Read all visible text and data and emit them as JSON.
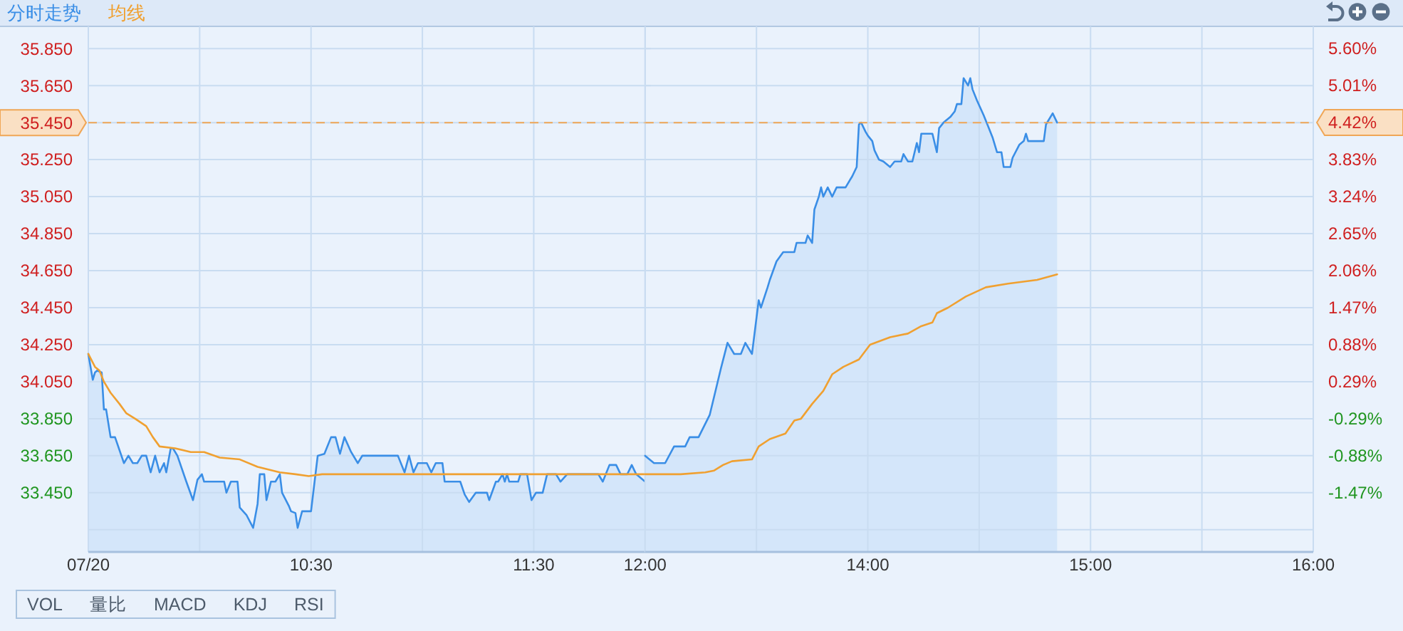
{
  "chart_data": [
    {
      "type": "area",
      "legend": "top left",
      "grid": true,
      "xlim": [
        9.5,
        12
      ],
      "xticks": [
        {
          "value": 9.5,
          "label": "07/20"
        },
        {
          "value": 10,
          "label": null
        },
        {
          "value": 10.5,
          "label": "10:30"
        },
        {
          "value": 11,
          "label": null
        },
        {
          "value": 11.5,
          "label": "11:30"
        },
        {
          "value": 12,
          "label": "12:00"
        }
      ],
      "ylim": [
        33.13,
        35.97
      ],
      "yticks": [
        {
          "value": 33.25,
          "label": null
        },
        {
          "value": 33.45,
          "label": "33.450"
        },
        {
          "value": 33.65,
          "label": "33.650"
        },
        {
          "value": 33.85,
          "label": "33.850"
        },
        {
          "value": 34.05,
          "label": "34.050"
        },
        {
          "value": 34.25,
          "label": "34.250"
        },
        {
          "value": 34.45,
          "label": "34.450"
        },
        {
          "value": 34.65,
          "label": "34.650"
        },
        {
          "value": 34.85,
          "label": "34.850"
        },
        {
          "value": 35.05,
          "label": "35.050"
        },
        {
          "value": 35.25,
          "label": "35.250"
        },
        {
          "value": 35.45,
          "label": "35.450"
        },
        {
          "value": 35.65,
          "label": "35.650"
        },
        {
          "value": 35.85,
          "label": "35.850"
        }
      ],
      "ref_lines": [
        {
          "axis": "y",
          "value": 35.45,
          "color": "#f0a656",
          "line_style": "dashed"
        }
      ],
      "annotations": [
        "VOL",
        "量比",
        "MACD",
        "KDJ",
        "RSI"
      ],
      "series": [
        {
          "name": "分时走势",
          "color": "#3a8ee6",
          "x": [
            9.5,
            9.52,
            9.53,
            9.54,
            9.56,
            9.57,
            9.58,
            9.6,
            9.62,
            9.66,
            9.68,
            9.7,
            9.72,
            9.74,
            9.76,
            9.78,
            9.8,
            9.82,
            9.84,
            9.85,
            9.87,
            9.88,
            9.9,
            9.94,
            9.97,
            9.99,
            10.01,
            10.02,
            10.11,
            10.12,
            10.14,
            10.17,
            10.18,
            10.21,
            10.24,
            10.26,
            10.27,
            10.29,
            10.3,
            10.32,
            10.34,
            10.36,
            10.37,
            10.4,
            10.41,
            10.43,
            10.44,
            10.46,
            10.5,
            10.52,
            10.53,
            10.56,
            10.59,
            10.61,
            10.63,
            10.65,
            10.68,
            10.71,
            10.73,
            10.89,
            10.92,
            10.94,
            10.96,
            10.98,
            11.02,
            11.04,
            11.06,
            11.09,
            11.1,
            11.17,
            11.19,
            11.21,
            11.24,
            11.29,
            11.3,
            11.33,
            11.34,
            11.36,
            11.37,
            11.38,
            11.39,
            11.43,
            11.44,
            11.47,
            11.49,
            11.51,
            11.54,
            11.56,
            11.6,
            11.62,
            11.65,
            11.79,
            11.81,
            11.84,
            11.87,
            11.89,
            11.92,
            11.94,
            11.96,
            12
          ],
          "values": [
            34.2,
            34.06,
            34.1,
            34.11,
            34.1,
            33.9,
            33.9,
            33.75,
            33.75,
            33.61,
            33.65,
            33.61,
            33.61,
            33.65,
            33.65,
            33.56,
            33.65,
            33.56,
            33.61,
            33.56,
            33.69,
            33.69,
            33.65,
            33.51,
            33.41,
            33.52,
            33.55,
            33.51,
            33.51,
            33.45,
            33.51,
            33.51,
            33.37,
            33.33,
            33.26,
            33.39,
            33.55,
            33.55,
            33.41,
            33.51,
            33.51,
            33.55,
            33.45,
            33.38,
            33.35,
            33.34,
            33.26,
            33.35,
            33.35,
            33.55,
            33.65,
            33.66,
            33.75,
            33.75,
            33.66,
            33.75,
            33.67,
            33.61,
            33.65,
            33.65,
            33.56,
            33.65,
            33.56,
            33.61,
            33.61,
            33.56,
            33.61,
            33.61,
            33.51,
            33.51,
            33.44,
            33.4,
            33.45,
            33.45,
            33.41,
            33.51,
            33.51,
            33.55,
            33.51,
            33.55,
            33.51,
            33.51,
            33.55,
            33.55,
            33.41,
            33.45,
            33.45,
            33.55,
            33.55,
            33.51,
            33.55,
            33.55,
            33.51,
            33.6,
            33.6,
            33.55,
            33.55,
            33.6,
            33.55,
            33.51
          ]
        },
        {
          "name": "均线",
          "type": "line",
          "color": "#f0a030",
          "x": [
            9.5,
            9.53,
            9.55,
            9.57,
            9.6,
            9.64,
            9.67,
            9.71,
            9.76,
            9.79,
            9.82,
            9.89,
            9.96,
            10.02,
            10.09,
            10.18,
            10.26,
            10.36,
            10.43,
            10.49,
            10.55,
            12
          ],
          "values": [
            34.2,
            34.13,
            34.11,
            34.05,
            33.99,
            33.93,
            33.88,
            33.85,
            33.81,
            33.75,
            33.7,
            33.69,
            33.67,
            33.67,
            33.64,
            33.63,
            33.59,
            33.56,
            33.55,
            33.54,
            33.55,
            33.55
          ]
        }
      ]
    },
    {
      "type": "area",
      "grid": true,
      "tick_labels": "x",
      "xlim": [
        13,
        16
      ],
      "xticks": [
        {
          "value": 13.5,
          "label": null
        },
        {
          "value": 14,
          "label": "14:00"
        },
        {
          "value": 14.5,
          "label": null
        },
        {
          "value": 15,
          "label": "15:00"
        },
        {
          "value": 15.5,
          "label": null
        },
        {
          "value": 16,
          "label": "16:00"
        }
      ],
      "ylim": [
        33.13,
        35.97
      ],
      "yticks": [
        {
          "value": 33.25,
          "label": null
        },
        {
          "value": 33.45,
          "label": null
        },
        {
          "value": 33.65,
          "label": null
        },
        {
          "value": 33.85,
          "label": null
        },
        {
          "value": 34.05,
          "label": null
        },
        {
          "value": 34.25,
          "label": null
        },
        {
          "value": 34.45,
          "label": null
        },
        {
          "value": 34.65,
          "label": null
        },
        {
          "value": 34.85,
          "label": null
        },
        {
          "value": 35.05,
          "label": null
        },
        {
          "value": 35.25,
          "label": null
        },
        {
          "value": 35.45,
          "label": null
        },
        {
          "value": 35.65,
          "label": null
        },
        {
          "value": 35.85,
          "label": null
        }
      ],
      "y2lim": [
        -2.42,
        5.95
      ],
      "y2ticks": [
        {
          "value": -1.47,
          "label": "-1.47%"
        },
        {
          "value": -0.88,
          "label": "-0.88%"
        },
        {
          "value": -0.29,
          "label": "-0.29%"
        },
        {
          "value": 0.29,
          "label": "0.29%"
        },
        {
          "value": 0.88,
          "label": "0.88%"
        },
        {
          "value": 1.47,
          "label": "1.47%"
        },
        {
          "value": 2.06,
          "label": "2.06%"
        },
        {
          "value": 2.65,
          "label": "2.65%"
        },
        {
          "value": 3.24,
          "label": "3.24%"
        },
        {
          "value": 3.83,
          "label": "3.83%"
        },
        {
          "value": 4.42,
          "label": "4.42%"
        },
        {
          "value": 5.01,
          "label": "5.01%"
        },
        {
          "value": 5.6,
          "label": "5.60%"
        }
      ],
      "ref_lines": [
        {
          "axis": "y",
          "value": 35.45,
          "color": "#f0a656",
          "line_style": "dashed"
        }
      ],
      "series": [
        {
          "color": "#3a8ee6",
          "x": [
            13,
            13.04,
            13.09,
            13.13,
            13.18,
            13.2,
            13.24,
            13.29,
            13.32,
            13.34,
            13.37,
            13.4,
            13.43,
            13.45,
            13.48,
            13.51,
            13.52,
            13.55,
            13.56,
            13.59,
            13.62,
            13.67,
            13.68,
            13.72,
            13.73,
            13.75,
            13.76,
            13.78,
            13.79,
            13.8,
            13.82,
            13.84,
            13.86,
            13.9,
            13.92,
            13.93,
            13.95,
            13.96,
            13.97,
            13.99,
            14,
            14.02,
            14.03,
            14.05,
            14.07,
            14.1,
            14.12,
            14.15,
            14.16,
            14.18,
            14.2,
            14.22,
            14.23,
            14.24,
            14.29,
            14.31,
            14.32,
            14.34,
            14.37,
            14.39,
            14.4,
            14.42,
            14.43,
            14.45,
            14.46,
            14.47,
            14.49,
            14.52,
            14.54,
            14.56,
            14.58,
            14.6,
            14.61,
            14.64,
            14.65,
            14.68,
            14.7,
            14.71,
            14.72,
            14.79,
            14.8,
            14.83,
            14.85
          ],
          "values": [
            33.65,
            33.61,
            33.61,
            33.7,
            33.7,
            33.75,
            33.75,
            33.87,
            34.02,
            34.12,
            34.26,
            34.2,
            34.2,
            34.26,
            34.2,
            34.49,
            34.45,
            34.56,
            34.6,
            34.7,
            34.75,
            34.75,
            34.8,
            34.8,
            34.84,
            34.8,
            34.98,
            35.05,
            35.1,
            35.05,
            35.1,
            35.05,
            35.1,
            35.1,
            35.14,
            35.16,
            35.21,
            35.44,
            35.45,
            35.4,
            35.38,
            35.35,
            35.3,
            35.25,
            35.24,
            35.21,
            35.24,
            35.24,
            35.28,
            35.24,
            35.24,
            35.34,
            35.29,
            35.39,
            35.39,
            35.29,
            35.42,
            35.45,
            35.48,
            35.51,
            35.55,
            35.55,
            35.69,
            35.65,
            35.69,
            35.63,
            35.57,
            35.49,
            35.43,
            35.37,
            35.29,
            35.29,
            35.21,
            35.21,
            35.26,
            35.33,
            35.35,
            35.39,
            35.35,
            35.35,
            35.44,
            35.5,
            35.45
          ]
        },
        {
          "type": "line",
          "color": "#f0a030",
          "x": [
            13,
            13.16,
            13.27,
            13.31,
            13.35,
            13.39,
            13.48,
            13.51,
            13.56,
            13.63,
            13.67,
            13.7,
            13.75,
            13.8,
            13.84,
            13.89,
            13.96,
            14.01,
            14.1,
            14.18,
            14.24,
            14.29,
            14.31,
            14.36,
            14.44,
            14.53,
            14.63,
            14.76,
            14.85
          ],
          "values": [
            33.55,
            33.55,
            33.56,
            33.57,
            33.6,
            33.62,
            33.63,
            33.7,
            33.74,
            33.77,
            33.84,
            33.85,
            33.93,
            34.0,
            34.09,
            34.13,
            34.17,
            34.25,
            34.29,
            34.31,
            34.35,
            34.37,
            34.42,
            34.45,
            34.51,
            34.56,
            34.58,
            34.6,
            34.63
          ]
        }
      ]
    }
  ]
}
